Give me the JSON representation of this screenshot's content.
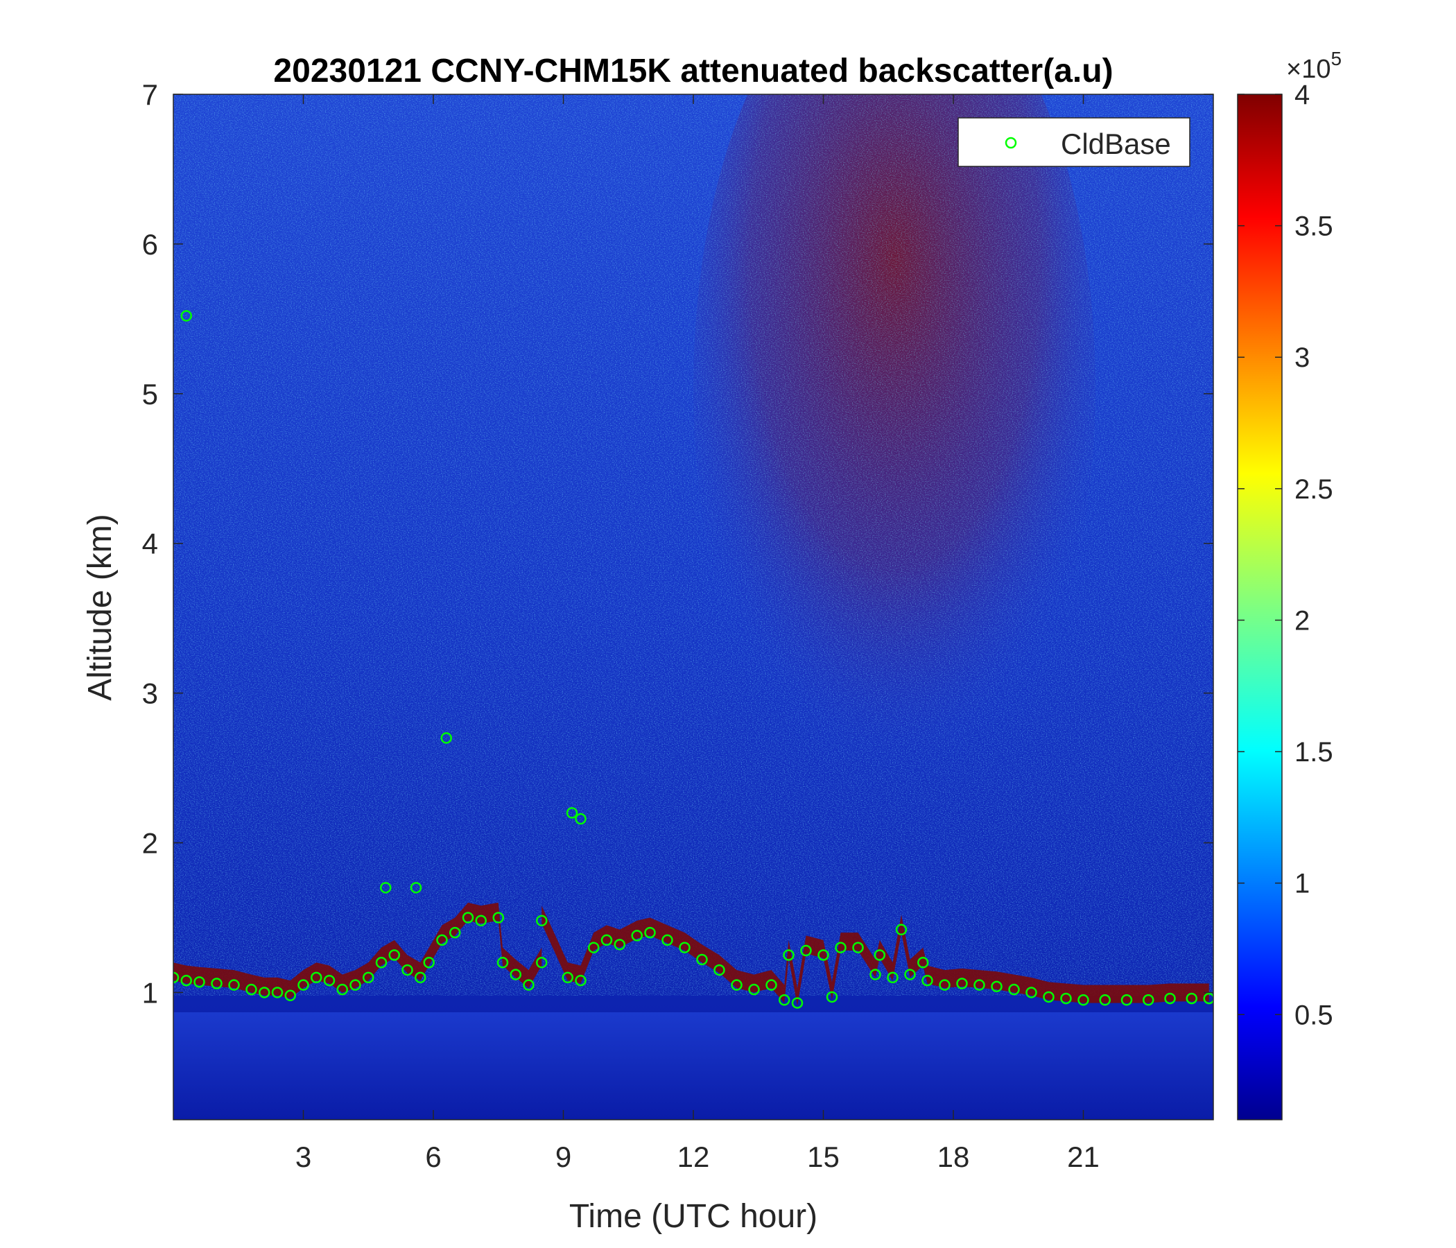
{
  "chart_data": {
    "type": "heatmap",
    "title": "20230121 CCNY-CHM15K attenuated backscatter(a.u)",
    "xlabel": "Time (UTC hour)",
    "ylabel": "Altitude (km)",
    "xlim": [
      0,
      24
    ],
    "ylim": [
      0.15,
      7
    ],
    "xticks": [
      3,
      6,
      9,
      12,
      15,
      18,
      21
    ],
    "xtick_labels": [
      "3",
      "6",
      "9",
      "12",
      "15",
      "18",
      "21"
    ],
    "yticks": [
      1,
      2,
      3,
      4,
      5,
      6,
      7
    ],
    "ytick_labels": [
      "1",
      "2",
      "3",
      "4",
      "5",
      "6",
      "7"
    ],
    "colorbar": {
      "colormap": "jet",
      "clim": [
        0.1,
        4
      ],
      "ticks": [
        0.5,
        1,
        1.5,
        2,
        2.5,
        3,
        3.5,
        4
      ],
      "tick_labels": [
        "0.5",
        "1",
        "1.5",
        "2",
        "2.5",
        "3",
        "3.5",
        "4"
      ],
      "exponent_label": "×10",
      "exponent": "5"
    },
    "legend": {
      "position": "top-right",
      "entries": [
        "CldBase"
      ]
    },
    "series": [
      {
        "name": "CldBase",
        "marker": "circle",
        "color": "#00ff00",
        "x": [
          0.0,
          0.3,
          0.6,
          1.0,
          1.4,
          1.8,
          2.1,
          2.4,
          2.7,
          3.0,
          3.3,
          3.6,
          3.9,
          4.2,
          4.5,
          4.8,
          5.1,
          5.4,
          5.7,
          5.9,
          6.2,
          6.5,
          6.8,
          7.1,
          7.6,
          7.9,
          8.2,
          8.5,
          9.1,
          9.4,
          9.7,
          10.0,
          10.3,
          10.7,
          11.0,
          11.4,
          11.8,
          12.2,
          12.6,
          13.0,
          13.4,
          13.8,
          14.2,
          14.6,
          15.0,
          15.4,
          15.8,
          16.2,
          16.6,
          17.0,
          17.4,
          17.8,
          18.2,
          18.6,
          19.0,
          19.4,
          19.8,
          20.2,
          20.6,
          21.0,
          21.5,
          22.0,
          22.5,
          23.0,
          23.5,
          23.9,
          0.3,
          6.3,
          9.2,
          9.4,
          4.9,
          5.6,
          16.8,
          14.1,
          14.4,
          15.2,
          8.5,
          7.5,
          17.3,
          16.3
        ],
        "y": [
          1.1,
          1.08,
          1.07,
          1.06,
          1.05,
          1.02,
          1.0,
          1.0,
          0.98,
          1.05,
          1.1,
          1.08,
          1.02,
          1.05,
          1.1,
          1.2,
          1.25,
          1.15,
          1.1,
          1.2,
          1.35,
          1.4,
          1.5,
          1.48,
          1.2,
          1.12,
          1.05,
          1.2,
          1.1,
          1.08,
          1.3,
          1.35,
          1.32,
          1.38,
          1.4,
          1.35,
          1.3,
          1.22,
          1.15,
          1.05,
          1.02,
          1.05,
          1.25,
          1.28,
          1.25,
          1.3,
          1.3,
          1.12,
          1.1,
          1.12,
          1.08,
          1.05,
          1.06,
          1.05,
          1.04,
          1.02,
          1.0,
          0.97,
          0.96,
          0.95,
          0.95,
          0.95,
          0.95,
          0.96,
          0.96,
          0.96,
          5.52,
          2.7,
          2.2,
          2.16,
          1.7,
          1.7,
          1.42,
          0.95,
          0.93,
          0.97,
          1.48,
          1.5,
          1.2,
          1.25
        ]
      }
    ]
  }
}
